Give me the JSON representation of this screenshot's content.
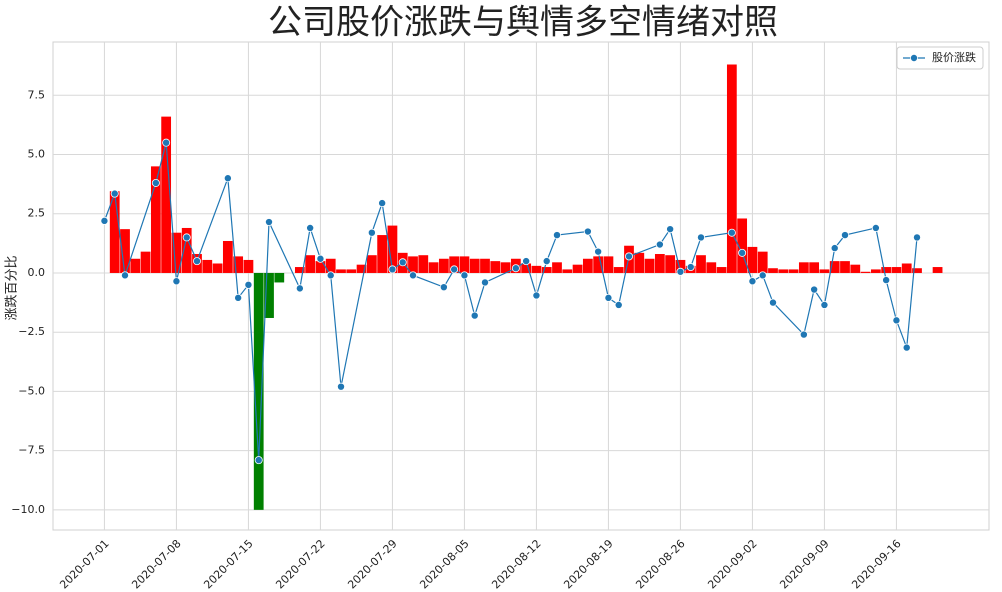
{
  "chart_data": {
    "type": "bar",
    "title": "公司股价涨跌与舆情多空情绪对照",
    "y_label": "涨跌百分比",
    "grid": true,
    "legend_loc": "upper right",
    "xlim": [
      "2020-06-26",
      "2020-09-25"
    ],
    "xticks": [
      "2020-07-01",
      "2020-07-08",
      "2020-07-15",
      "2020-07-22",
      "2020-07-29",
      "2020-08-05",
      "2020-08-12",
      "2020-08-19",
      "2020-08-26",
      "2020-09-02",
      "2020-09-09",
      "2020-09-16"
    ],
    "ylim": [
      -10.85,
      9.75
    ],
    "yticks": [
      {
        "value": -10,
        "label": "−10.0"
      },
      {
        "value": -7.5,
        "label": "−7.5"
      },
      {
        "value": -5,
        "label": "−5.0"
      },
      {
        "value": -2.5,
        "label": "−2.5"
      },
      {
        "value": 0,
        "label": "0.0"
      },
      2.5,
      {
        "value": 5,
        "label": "5.0"
      },
      7.5
    ],
    "series": [
      {
        "type": "bar",
        "color": "#ff0000",
        "negative_color": "#008000",
        "x": [
          "2020-07-02",
          "2020-07-03",
          "2020-07-04",
          "2020-07-05",
          "2020-07-06",
          "2020-07-07",
          "2020-07-08",
          "2020-07-09",
          "2020-07-10",
          "2020-07-11",
          "2020-07-12",
          "2020-07-13",
          "2020-07-14",
          "2020-07-15",
          "2020-07-16",
          "2020-07-17",
          "2020-07-18",
          "2020-07-19",
          "2020-07-20",
          "2020-07-21",
          "2020-07-22",
          "2020-07-23",
          "2020-07-24",
          "2020-07-25",
          "2020-07-26",
          "2020-07-27",
          "2020-07-28",
          "2020-07-29",
          "2020-07-30",
          "2020-07-31",
          "2020-08-01",
          "2020-08-02",
          "2020-08-03",
          "2020-08-04",
          "2020-08-05",
          "2020-08-06",
          "2020-08-07",
          "2020-08-08",
          "2020-08-09",
          "2020-08-10",
          "2020-08-11",
          "2020-08-12",
          "2020-08-13",
          "2020-08-14",
          "2020-08-15",
          "2020-08-16",
          "2020-08-17",
          "2020-08-18",
          "2020-08-19",
          "2020-08-20",
          "2020-08-21",
          "2020-08-22",
          "2020-08-23",
          "2020-08-24",
          "2020-08-25",
          "2020-08-26",
          "2020-08-27",
          "2020-08-28",
          "2020-08-29",
          "2020-08-30",
          "2020-08-31",
          "2020-09-01",
          "2020-09-02",
          "2020-09-03",
          "2020-09-04",
          "2020-09-05",
          "2020-09-06",
          "2020-09-07",
          "2020-09-08",
          "2020-09-09",
          "2020-09-10",
          "2020-09-11",
          "2020-09-12",
          "2020-09-13",
          "2020-09-14",
          "2020-09-15",
          "2020-09-16",
          "2020-09-17",
          "2020-09-18",
          "2020-09-19",
          "2020-09-20"
        ],
        "values": [
          3.45,
          1.85,
          0.6,
          0.9,
          4.5,
          6.6,
          1.7,
          1.9,
          0.8,
          0.55,
          0.4,
          1.35,
          0.7,
          0.55,
          -10.0,
          -1.9,
          -0.4,
          0,
          0.25,
          0.75,
          0.5,
          0.6,
          0.15,
          0.15,
          0.35,
          0.75,
          1.6,
          2.0,
          0.85,
          0.7,
          0.75,
          0.45,
          0.6,
          0.7,
          0.7,
          0.6,
          0.6,
          0.5,
          0.45,
          0.6,
          0.4,
          0.3,
          0.25,
          0.45,
          0.15,
          0.35,
          0.6,
          0.7,
          0.7,
          0.25,
          1.15,
          0.85,
          0.6,
          0.8,
          0.75,
          0.55,
          0.3,
          0.75,
          0.45,
          0.25,
          8.8,
          2.3,
          1.1,
          0.9,
          0.2,
          0.15,
          0.15,
          0.45,
          0.45,
          0.15,
          0.5,
          0.5,
          0.35,
          0.05,
          0.15,
          0.25,
          0.25,
          0.4,
          0.2,
          0,
          0.25
        ]
      },
      {
        "type": "line",
        "name": "股价涨跌",
        "color": "#1f77b4",
        "x": [
          "2020-07-01",
          "2020-07-02",
          "2020-07-03",
          "2020-07-06",
          "2020-07-07",
          "2020-07-08",
          "2020-07-09",
          "2020-07-10",
          "2020-07-13",
          "2020-07-14",
          "2020-07-15",
          "2020-07-16",
          "2020-07-17",
          "2020-07-20",
          "2020-07-21",
          "2020-07-22",
          "2020-07-23",
          "2020-07-24",
          "2020-07-27",
          "2020-07-28",
          "2020-07-29",
          "2020-07-30",
          "2020-07-31",
          "2020-08-03",
          "2020-08-04",
          "2020-08-05",
          "2020-08-06",
          "2020-08-07",
          "2020-08-10",
          "2020-08-11",
          "2020-08-12",
          "2020-08-13",
          "2020-08-14",
          "2020-08-17",
          "2020-08-18",
          "2020-08-19",
          "2020-08-20",
          "2020-08-21",
          "2020-08-24",
          "2020-08-25",
          "2020-08-26",
          "2020-08-27",
          "2020-08-28",
          "2020-08-31",
          "2020-09-01",
          "2020-09-02",
          "2020-09-03",
          "2020-09-04",
          "2020-09-07",
          "2020-09-08",
          "2020-09-09",
          "2020-09-10",
          "2020-09-11",
          "2020-09-14",
          "2020-09-15",
          "2020-09-16",
          "2020-09-17",
          "2020-09-18"
        ],
        "values": [
          2.2,
          3.35,
          -0.1,
          3.8,
          5.5,
          -0.35,
          1.5,
          0.5,
          4.0,
          -1.05,
          -0.5,
          -7.9,
          2.15,
          -0.65,
          1.9,
          0.6,
          -0.1,
          -4.8,
          1.7,
          2.95,
          0.15,
          0.45,
          -0.1,
          -0.6,
          0.15,
          -0.1,
          -1.8,
          -0.4,
          0.2,
          0.5,
          -0.95,
          0.5,
          1.6,
          1.75,
          0.9,
          -1.05,
          -1.35,
          0.7,
          1.2,
          1.85,
          0.05,
          0.25,
          1.5,
          1.7,
          0.85,
          -0.35,
          -0.1,
          -1.25,
          -2.6,
          -0.7,
          -1.35,
          1.05,
          1.6,
          1.9,
          -0.3,
          -2.0,
          -3.15,
          1.5
        ]
      }
    ]
  }
}
